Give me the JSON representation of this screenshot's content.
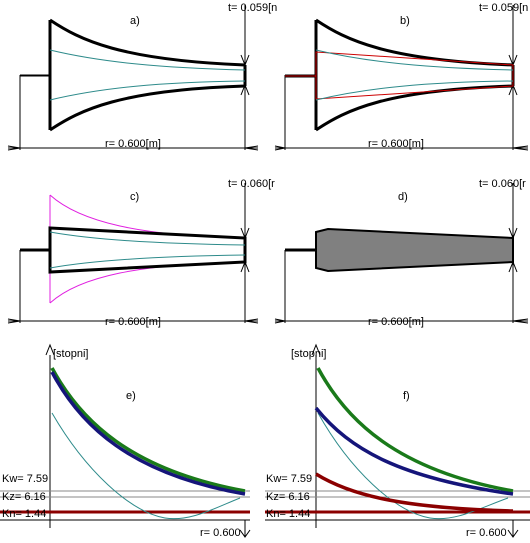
{
  "panels": {
    "a": {
      "label": "a)",
      "t_text": "t= 0.059[n",
      "r_text": "r= 0.600[m]"
    },
    "b": {
      "label": "b)",
      "t_text": "t= 0.059[n",
      "r_text": "r= 0.600[m]"
    },
    "c": {
      "label": "c)",
      "t_text": "t= 0.060[r",
      "r_text": "r= 0.600[m]"
    },
    "d": {
      "label": "d)",
      "t_text": "t= 0.060[r",
      "r_text": "r= 0.600[m]"
    }
  },
  "plots": {
    "e": {
      "label": "e)",
      "y_label": "[stopni]",
      "kw": "Kw= 7.59",
      "kz": "Kz= 6.16",
      "kn": "Kn= 1.44",
      "r_text": "r= 0.600"
    },
    "f": {
      "label": "f)",
      "y_label": "[stopni]",
      "kw": "Kw= 7.59",
      "kz": "Kz= 6.16",
      "kn": "Kn= 1.44",
      "r_text": "r= 0.600"
    }
  },
  "colors": {
    "outline": "#000000",
    "teal": "#2e8b8b",
    "red": "#cc0000",
    "magenta": "#e020e0",
    "fill_gray": "#808080",
    "green": "#1a7a1a",
    "navy": "#15157a",
    "darkred": "#8b0000",
    "gray": "#888888"
  }
}
